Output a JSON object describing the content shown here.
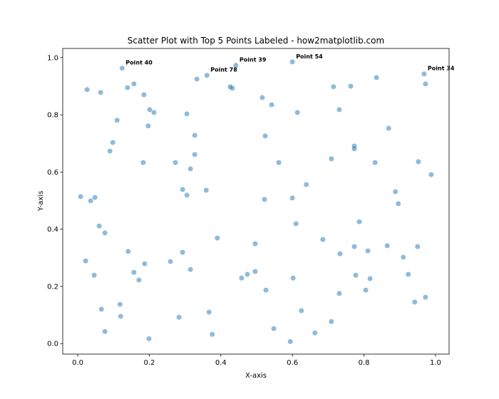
{
  "chart_data": {
    "type": "scatter",
    "title": "Scatter Plot with Top 5 Points Labeled - how2matplotlib.com",
    "x_label": "X-axis",
    "y_label": "Y-axis",
    "color": "#1f77b4",
    "alpha": 0.5,
    "grid": false,
    "xlim": [
      -0.042,
      1.038
    ],
    "ylim": [
      -0.037,
      1.032
    ],
    "xticks": [
      {
        "value": 0,
        "label": "0.0"
      },
      0.2,
      0.4,
      0.6,
      0.8,
      {
        "value": 1,
        "label": "1.0"
      }
    ],
    "yticks": [
      {
        "value": 0,
        "label": "0.0"
      },
      0.2,
      0.4,
      0.6,
      0.8,
      {
        "value": 1,
        "label": "1.0"
      }
    ],
    "annotations": [
      "Point 40",
      "Point 78",
      "Point 39",
      "Point 54",
      "Point 34"
    ],
    "x": [
      0.124,
      0.361,
      0.442,
      0.6,
      0.968,
      0.026,
      0.064,
      0.139,
      0.157,
      0.185,
      0.201,
      0.213,
      0.333,
      0.426,
      0.432,
      0.516,
      0.542,
      0.614,
      0.715,
      0.763,
      0.835,
      0.972,
      0.731,
      0.11,
      0.197,
      0.305,
      0.327,
      0.098,
      0.09,
      0.524,
      0.869,
      0.773,
      0.773,
      0.327,
      0.183,
      0.273,
      0.315,
      0.562,
      0.709,
      0.831,
      0.952,
      0.988,
      0.008,
      0.036,
      0.048,
      0.293,
      0.305,
      0.359,
      0.522,
      0.6,
      0.639,
      0.888,
      0.896,
      0.06,
      0.076,
      0.39,
      0.61,
      0.685,
      0.787,
      0.496,
      0.733,
      0.773,
      0.811,
      0.865,
      0.91,
      0.95,
      0.022,
      0.141,
      0.293,
      0.259,
      0.187,
      0.157,
      0.171,
      0.046,
      0.315,
      0.474,
      0.458,
      0.496,
      0.602,
      0.777,
      0.817,
      0.924,
      0.526,
      0.731,
      0.805,
      0.972,
      0.942,
      0.118,
      0.12,
      0.066,
      0.076,
      0.283,
      0.367,
      0.376,
      0.199,
      0.548,
      0.625,
      0.663,
      0.709,
      0.594
    ],
    "y": [
      0.963,
      0.938,
      0.973,
      0.985,
      0.943,
      0.888,
      0.878,
      0.895,
      0.908,
      0.87,
      0.818,
      0.808,
      0.925,
      0.898,
      0.893,
      0.86,
      0.835,
      0.808,
      0.898,
      0.9,
      0.93,
      0.908,
      0.818,
      0.781,
      0.761,
      0.803,
      0.728,
      0.703,
      0.673,
      0.726,
      0.753,
      0.691,
      0.681,
      0.661,
      0.633,
      0.633,
      0.611,
      0.633,
      0.646,
      0.633,
      0.636,
      0.591,
      0.514,
      0.499,
      0.511,
      0.539,
      0.519,
      0.536,
      0.504,
      0.509,
      0.556,
      0.531,
      0.489,
      0.411,
      0.387,
      0.369,
      0.419,
      0.364,
      0.426,
      0.349,
      0.314,
      0.339,
      0.324,
      0.342,
      0.302,
      0.339,
      0.289,
      0.322,
      0.319,
      0.287,
      0.279,
      0.249,
      0.222,
      0.239,
      0.259,
      0.242,
      0.229,
      0.252,
      0.229,
      0.239,
      0.227,
      0.242,
      0.187,
      0.175,
      0.187,
      0.162,
      0.145,
      0.137,
      0.095,
      0.12,
      0.042,
      0.092,
      0.11,
      0.032,
      0.017,
      0.052,
      0.115,
      0.037,
      0.077,
      0.007
    ]
  }
}
